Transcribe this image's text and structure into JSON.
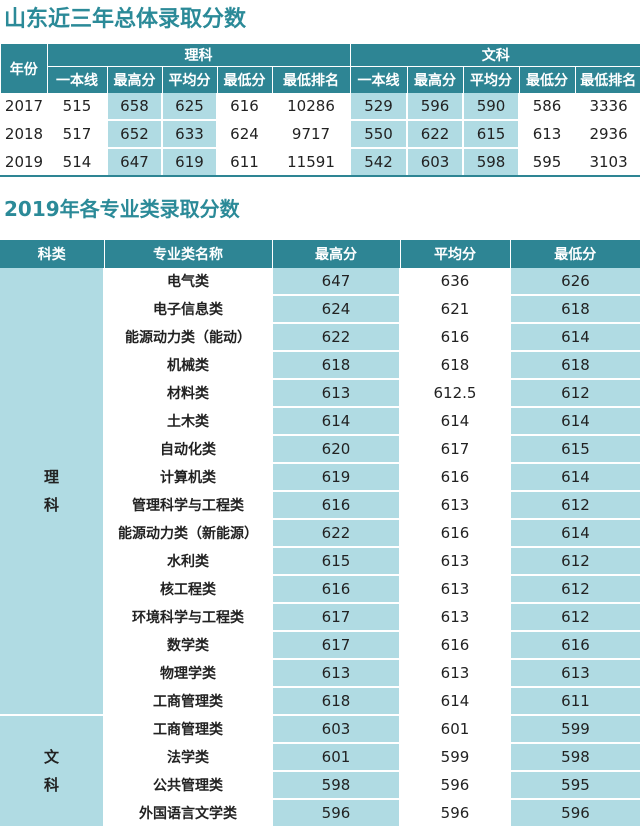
{
  "title1": "山东近三年总体录取分数",
  "title2": "2019年各专业类录取分数",
  "summary": {
    "year_header": "年份",
    "groups": [
      "理科",
      "文科"
    ],
    "columns": [
      "一本线",
      "最高分",
      "平均分",
      "最低分",
      "最低排名",
      "一本线",
      "最高分",
      "平均分",
      "最低分",
      "最低排名"
    ],
    "rows": [
      {
        "year": "2017",
        "values": [
          "515",
          "658",
          "625",
          "616",
          "10286",
          "529",
          "596",
          "590",
          "586",
          "3336"
        ]
      },
      {
        "year": "2018",
        "values": [
          "517",
          "652",
          "633",
          "624",
          "9717",
          "550",
          "622",
          "615",
          "613",
          "2936"
        ]
      },
      {
        "year": "2019",
        "values": [
          "514",
          "647",
          "619",
          "611",
          "11591",
          "542",
          "603",
          "598",
          "595",
          "3103"
        ]
      }
    ]
  },
  "majors": {
    "headers": [
      "科类",
      "专业类名称",
      "最高分",
      "平均分",
      "最低分"
    ],
    "categories": [
      {
        "label": "理科",
        "chars": [
          "理",
          "科"
        ],
        "rows": [
          {
            "name": "电气类",
            "max": "647",
            "avg": "636",
            "min": "626"
          },
          {
            "name": "电子信息类",
            "max": "624",
            "avg": "621",
            "min": "618"
          },
          {
            "name": "能源动力类（能动）",
            "max": "622",
            "avg": "616",
            "min": "614"
          },
          {
            "name": "机械类",
            "max": "618",
            "avg": "618",
            "min": "618"
          },
          {
            "name": "材料类",
            "max": "613",
            "avg": "612.5",
            "min": "612"
          },
          {
            "name": "土木类",
            "max": "614",
            "avg": "614",
            "min": "614"
          },
          {
            "name": "自动化类",
            "max": "620",
            "avg": "617",
            "min": "615"
          },
          {
            "name": "计算机类",
            "max": "619",
            "avg": "616",
            "min": "614"
          },
          {
            "name": "管理科学与工程类",
            "max": "616",
            "avg": "613",
            "min": "612"
          },
          {
            "name": "能源动力类（新能源）",
            "max": "622",
            "avg": "616",
            "min": "614"
          },
          {
            "name": "水利类",
            "max": "615",
            "avg": "613",
            "min": "612"
          },
          {
            "name": "核工程类",
            "max": "616",
            "avg": "613",
            "min": "612"
          },
          {
            "name": "环境科学与工程类",
            "max": "617",
            "avg": "613",
            "min": "612"
          },
          {
            "name": "数学类",
            "max": "617",
            "avg": "616",
            "min": "616"
          },
          {
            "name": "物理学类",
            "max": "613",
            "avg": "613",
            "min": "613"
          },
          {
            "name": "工商管理类",
            "max": "618",
            "avg": "614",
            "min": "611"
          }
        ]
      },
      {
        "label": "文科",
        "chars": [
          "文",
          "科"
        ],
        "rows": [
          {
            "name": "工商管理类",
            "max": "603",
            "avg": "601",
            "min": "599"
          },
          {
            "name": "法学类",
            "max": "601",
            "avg": "599",
            "min": "598"
          },
          {
            "name": "公共管理类",
            "max": "598",
            "avg": "596",
            "min": "595"
          },
          {
            "name": "外国语言文学类",
            "max": "596",
            "avg": "596",
            "min": "596"
          }
        ]
      }
    ]
  }
}
